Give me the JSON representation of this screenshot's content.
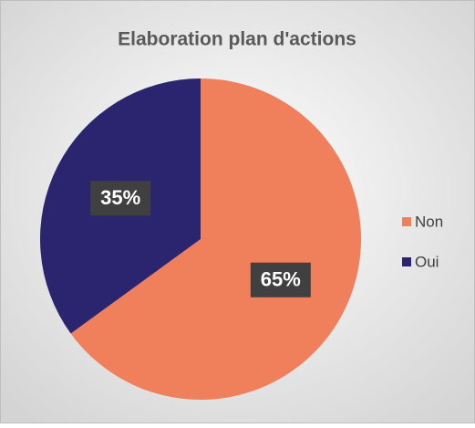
{
  "chart_data": {
    "type": "pie",
    "title": "Elaboration plan d'actions",
    "categories": [
      "Non",
      "Oui"
    ],
    "values": [
      65,
      35
    ],
    "value_labels": [
      "65%",
      "35%"
    ],
    "colors": [
      "#f07f5c",
      "#2b2570"
    ],
    "legend": "right"
  }
}
